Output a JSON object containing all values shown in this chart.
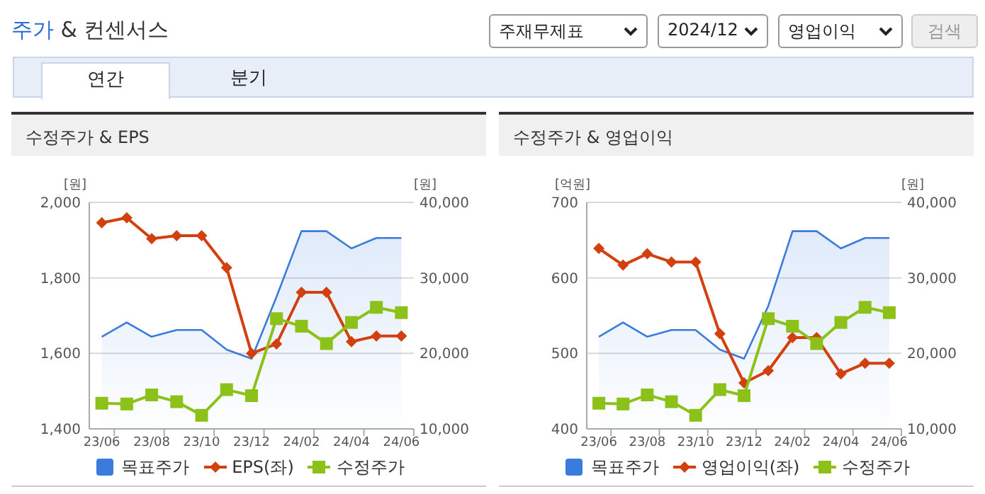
{
  "chart_data": [
    {
      "type": "other",
      "title": "주가 & 컨센서스",
      "annotations": [
        "주재무제표",
        "2024/12",
        "영업이익",
        "검색",
        "연간",
        "분기"
      ]
    },
    {
      "type": "line",
      "title": "수정주가 & EPS",
      "ylabel": "[원]",
      "y2label": "[원]",
      "categories": [
        "23/06",
        null,
        "23/08",
        null,
        "23/10",
        null,
        "23/12",
        null,
        "24/02",
        null,
        "24/04",
        null,
        "24/06"
      ],
      "ylim": [
        1400,
        2000
      ],
      "yticks": [
        {
          "value": 1400,
          "label": "1,400"
        },
        {
          "value": 1600,
          "label": "1,600"
        },
        {
          "value": 1800,
          "label": "1,800"
        },
        {
          "value": 2000,
          "label": "2,000"
        }
      ],
      "y2lim": [
        10000,
        40000
      ],
      "y2ticks": [
        {
          "value": 10000,
          "label": "10,000"
        },
        {
          "value": 20000,
          "label": "20,000"
        },
        {
          "value": 30000,
          "label": "30,000"
        },
        {
          "value": 40000,
          "label": "40,000"
        }
      ],
      "grid": "y",
      "legend": "bottom",
      "series": [
        {
          "name": "목표주가",
          "type": "area",
          "axis": "y2",
          "color": "#3a7bdc",
          "marker": "none",
          "values": [
            22200,
            24100,
            22200,
            23100,
            23100,
            20500,
            19300,
            27500,
            36200,
            36200,
            33900,
            35300,
            35300
          ]
        },
        {
          "name": "EPS(좌)",
          "type": "line",
          "axis": "y",
          "color": "#d2400f",
          "marker": "diamond",
          "values": [
            1946,
            1959,
            1904,
            1912,
            1912,
            1827,
            1600,
            1625,
            1762,
            1762,
            1631,
            1646,
            1646
          ]
        },
        {
          "name": "수정주가",
          "type": "line",
          "axis": "y2",
          "color": "#8cc11a",
          "marker": "square",
          "values": [
            13400,
            13300,
            14500,
            13600,
            11800,
            15200,
            14400,
            24600,
            23600,
            21300,
            24100,
            26100,
            25400
          ]
        }
      ]
    },
    {
      "type": "line",
      "title": "수정주가 & 영업이익",
      "ylabel": "[억원]",
      "y2label": "[원]",
      "categories": [
        "23/06",
        null,
        "23/08",
        null,
        "23/10",
        null,
        "23/12",
        null,
        "24/02",
        null,
        "24/04",
        null,
        "24/06"
      ],
      "ylim": [
        400,
        700
      ],
      "yticks": [
        400,
        500,
        600,
        700
      ],
      "y2lim": [
        10000,
        40000
      ],
      "y2ticks": [
        {
          "value": 10000,
          "label": "10,000"
        },
        {
          "value": 20000,
          "label": "20,000"
        },
        {
          "value": 30000,
          "label": "30,000"
        },
        {
          "value": 40000,
          "label": "40,000"
        }
      ],
      "grid": "y",
      "legend": "bottom",
      "series": [
        {
          "name": "목표주가",
          "type": "area",
          "axis": "y2",
          "color": "#3a7bdc",
          "marker": "none",
          "values": [
            22200,
            24100,
            22200,
            23100,
            23100,
            20500,
            19300,
            26300,
            36200,
            36200,
            33900,
            35300,
            35300
          ]
        },
        {
          "name": "영업이익(좌)",
          "type": "line",
          "axis": "y",
          "color": "#d2400f",
          "marker": "diamond",
          "values": [
            639,
            617,
            632,
            621,
            621,
            526,
            461,
            477,
            521,
            521,
            473,
            487,
            487
          ]
        },
        {
          "name": "수정주가",
          "type": "line",
          "axis": "y2",
          "color": "#8cc11a",
          "marker": "square",
          "values": [
            13400,
            13300,
            14500,
            13600,
            11800,
            15200,
            14400,
            24600,
            23600,
            21300,
            24100,
            26100,
            25400
          ]
        }
      ]
    }
  ]
}
